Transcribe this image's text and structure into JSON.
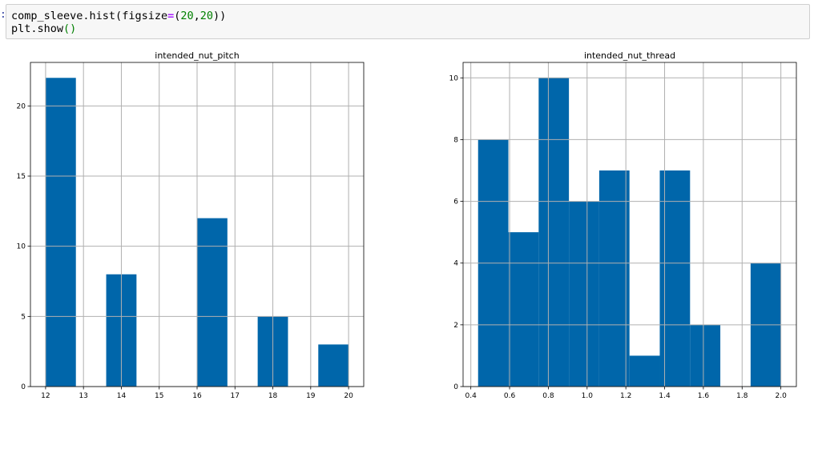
{
  "cell": {
    "prompt": ":",
    "line1": {
      "object": "comp_sleeve",
      "method": ".hist",
      "open": "(",
      "arg": "figsize",
      "op": "=",
      "tuple_open": "(",
      "n1": "20",
      "comma": ",",
      "n2": "20",
      "close": "))"
    },
    "line2": {
      "text": "plt.show",
      "call": "()"
    }
  },
  "colors": {
    "bar_fill": "#0066aa",
    "grid": "#b0b0b0",
    "axes_edge": "#000000"
  },
  "chart_data": [
    {
      "type": "bar",
      "title": "intended_nut_pitch",
      "xlabel": "",
      "ylabel": "",
      "xlim": [
        11.6,
        20.4
      ],
      "ylim": [
        0,
        23.1
      ],
      "grid": true,
      "bins": [
        {
          "x0": 12.0,
          "x1": 12.8,
          "count": 22
        },
        {
          "x0": 12.8,
          "x1": 13.6,
          "count": 0
        },
        {
          "x0": 13.6,
          "x1": 14.4,
          "count": 8
        },
        {
          "x0": 14.4,
          "x1": 15.2,
          "count": 0
        },
        {
          "x0": 15.2,
          "x1": 16.0,
          "count": 0
        },
        {
          "x0": 16.0,
          "x1": 16.8,
          "count": 12
        },
        {
          "x0": 16.8,
          "x1": 17.6,
          "count": 0
        },
        {
          "x0": 17.6,
          "x1": 18.4,
          "count": 5
        },
        {
          "x0": 18.4,
          "x1": 19.2,
          "count": 0
        },
        {
          "x0": 19.2,
          "x1": 20.0,
          "count": 3
        }
      ],
      "xticks": [
        12,
        13,
        14,
        15,
        16,
        17,
        18,
        19,
        20
      ],
      "xtick_labels": [
        "12",
        "13",
        "14",
        "15",
        "16",
        "17",
        "18",
        "19",
        "20"
      ],
      "yticks": [
        0,
        5,
        10,
        15,
        20
      ],
      "ytick_labels": [
        "0",
        "5",
        "10",
        "15",
        "20"
      ]
    },
    {
      "type": "bar",
      "title": "intended_nut_thread",
      "xlabel": "",
      "ylabel": "",
      "xlim": [
        0.36,
        2.08
      ],
      "ylim": [
        0,
        10.5
      ],
      "grid": true,
      "bins": [
        {
          "x0": 0.4375,
          "x1": 0.5938,
          "count": 8
        },
        {
          "x0": 0.5938,
          "x1": 0.75,
          "count": 5
        },
        {
          "x0": 0.75,
          "x1": 0.9063,
          "count": 10
        },
        {
          "x0": 0.9063,
          "x1": 1.0625,
          "count": 6
        },
        {
          "x0": 1.0625,
          "x1": 1.2188,
          "count": 7
        },
        {
          "x0": 1.2188,
          "x1": 1.375,
          "count": 1
        },
        {
          "x0": 1.375,
          "x1": 1.5313,
          "count": 7
        },
        {
          "x0": 1.5313,
          "x1": 1.6875,
          "count": 2
        },
        {
          "x0": 1.6875,
          "x1": 1.8438,
          "count": 0
        },
        {
          "x0": 1.8438,
          "x1": 2.0,
          "count": 4
        }
      ],
      "xticks": [
        0.4,
        0.6,
        0.8,
        1.0,
        1.2,
        1.4,
        1.6,
        1.8,
        2.0
      ],
      "xtick_labels": [
        "0.4",
        "0.6",
        "0.8",
        "1.0",
        "1.2",
        "1.4",
        "1.6",
        "1.8",
        "2.0"
      ],
      "yticks": [
        0,
        2,
        4,
        6,
        8,
        10
      ],
      "ytick_labels": [
        "0",
        "2",
        "4",
        "6",
        "8",
        "10"
      ]
    }
  ]
}
